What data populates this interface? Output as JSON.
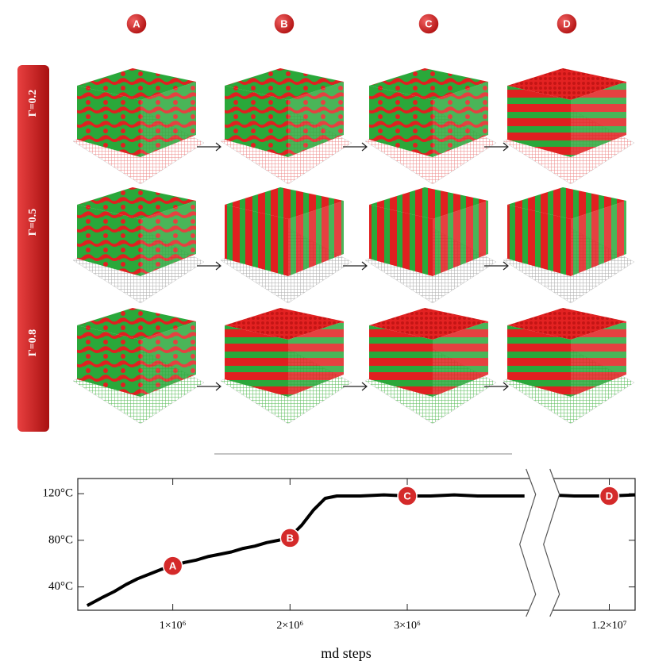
{
  "columns": [
    "A",
    "B",
    "C",
    "D"
  ],
  "rows": [
    "Γ=0.2",
    "Γ=0.5",
    "Γ=0.8"
  ],
  "chart_data": {
    "type": "line",
    "x_label": "md steps",
    "x": [
      270000,
      400000,
      500000,
      600000,
      700000,
      800000,
      900000,
      1000000,
      1100000,
      1200000,
      1300000,
      1400000,
      1500000,
      1600000,
      1700000,
      1800000,
      1900000,
      2000000,
      2100000,
      2200000,
      2300000,
      2400000,
      2600000,
      2800000,
      3000000,
      3200000,
      3400000,
      3600000,
      3800000,
      4000000,
      7000000,
      11480000,
      11700000,
      11900000,
      12000000,
      12220000
    ],
    "series": [
      {
        "color": "#000000",
        "values": [
          24,
          31,
          36,
          42,
          47,
          51,
          55,
          58,
          61,
          63,
          66,
          68,
          70,
          73,
          75,
          78,
          80,
          83,
          93,
          106,
          116,
          118,
          118,
          119,
          118,
          118,
          119,
          118,
          118,
          118,
          null,
          119,
          118,
          118,
          118,
          119
        ]
      }
    ],
    "xlim": [
      190000,
      12220000
    ],
    "axis_break": [
      4000000,
      11480000
    ],
    "ylim": [
      20,
      133
    ],
    "xticks": [
      {
        "value": 1000000,
        "label": "1×10⁶"
      },
      {
        "value": 2000000,
        "label": "2×10⁶"
      },
      {
        "value": 3000000,
        "label": "3×10⁶"
      },
      {
        "value": 12000000,
        "label": "1.2×10⁷"
      }
    ],
    "yticks": [
      {
        "value": 40,
        "label": "40°C"
      },
      {
        "value": 80,
        "label": "80°C"
      },
      {
        "value": 120,
        "label": "120°C"
      }
    ],
    "markers": [
      {
        "label": "A",
        "x": 1000000,
        "y": 58
      },
      {
        "label": "B",
        "x": 2000000,
        "y": 82
      },
      {
        "label": "C",
        "x": 3000000,
        "y": 118
      },
      {
        "label": "D",
        "x": 12000000,
        "y": 118
      }
    ],
    "marker_color": "#d42a2a"
  }
}
